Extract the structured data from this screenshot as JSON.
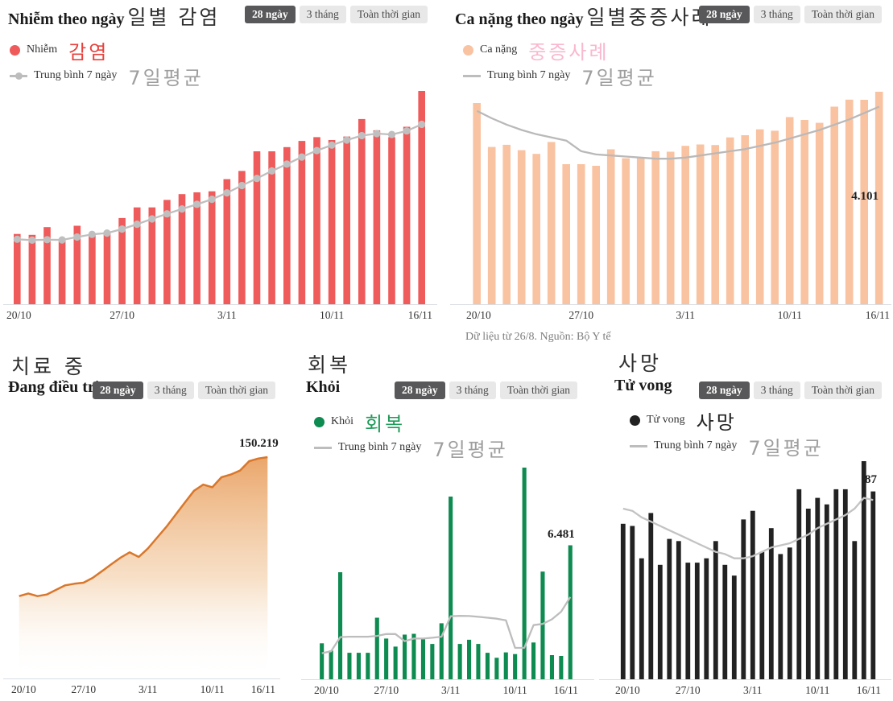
{
  "page": {
    "caption": "Dữ liệu từ 26/8. Nguồn: Bộ Y tế"
  },
  "tabs": {
    "items": [
      "28 ngày",
      "3 tháng",
      "Toàn thời gian"
    ],
    "selected": "28 ngày"
  },
  "colors": {
    "infections_bar": "#ef5a5a",
    "severe_bar": "#f9c3a2",
    "treatment_line": "#d9772b",
    "recovered_bar": "#0d8b50",
    "deaths_bar": "#222222",
    "average_line": "#bdbdbd",
    "tab_selected_bg": "#58585a",
    "tab_bg": "#e8e8e8",
    "korean_infection_text": "#e8413d",
    "korean_severe_text": "#f9b8cf",
    "korean_recovered_text": "#1d9a57",
    "korean_deaths_text": "#222222",
    "korean_average_text": "#9e9e9e",
    "axis_line": "#d9dde3"
  },
  "chart_data": [
    {
      "id": "infections",
      "type": "bar",
      "title": "Nhiễm theo ngày",
      "korean_title": "일별 감염",
      "legend": [
        {
          "label": "Nhiễm",
          "korean": "감염"
        },
        {
          "label": "Trung bình 7 ngày",
          "korean": "7일평균"
        }
      ],
      "categories": [
        "20/10",
        "21/10",
        "22/10",
        "23/10",
        "24/10",
        "25/10",
        "26/10",
        "27/10",
        "28/10",
        "29/10",
        "30/10",
        "31/10",
        "1/11",
        "2/11",
        "3/11",
        "4/11",
        "5/11",
        "6/11",
        "7/11",
        "8/11",
        "9/11",
        "10/11",
        "11/11",
        "12/11",
        "13/11",
        "14/11",
        "15/11",
        "16/11"
      ],
      "x_ticks": [
        "20/10",
        "27/10",
        "3/11",
        "10/11",
        "16/11"
      ],
      "tick_indices": [
        0,
        7,
        14,
        21,
        27
      ],
      "ylim": [
        0,
        9700
      ],
      "series": [
        {
          "name": "Nhiễm",
          "type": "bar",
          "color": "#ef5a5a",
          "values": [
            3180,
            3140,
            3490,
            2920,
            3550,
            3140,
            3200,
            3900,
            4380,
            4380,
            4720,
            4980,
            5060,
            5110,
            5660,
            6030,
            6920,
            6920,
            7110,
            7390,
            7560,
            7430,
            7590,
            8380,
            7870,
            7560,
            8030,
            9650
          ]
        },
        {
          "name": "Trung bình 7 ngày",
          "type": "line",
          "color": "#bfbfbf",
          "markers": true,
          "values": [
            2940,
            2900,
            2920,
            2910,
            3040,
            3160,
            3220,
            3400,
            3620,
            3860,
            4090,
            4310,
            4520,
            4750,
            5040,
            5370,
            5690,
            6030,
            6340,
            6660,
            6950,
            7200,
            7430,
            7630,
            7720,
            7680,
            7840,
            8140
          ]
        }
      ]
    },
    {
      "id": "severe",
      "type": "bar",
      "title": "Ca nặng theo ngày",
      "korean_title": "일별중증사례",
      "value_label": "4.101",
      "legend": [
        {
          "label": "Ca nặng",
          "korean": "중증사례"
        },
        {
          "label": "Trung bình 7 ngày",
          "korean": "7일평균"
        }
      ],
      "categories": [
        "20/10",
        "21/10",
        "22/10",
        "23/10",
        "24/10",
        "25/10",
        "26/10",
        "27/10",
        "28/10",
        "29/10",
        "30/10",
        "31/10",
        "1/11",
        "2/11",
        "3/11",
        "4/11",
        "5/11",
        "6/11",
        "7/11",
        "8/11",
        "9/11",
        "10/11",
        "11/11",
        "12/11",
        "13/11",
        "14/11",
        "15/11",
        "16/11"
      ],
      "x_ticks": [
        "20/10",
        "27/10",
        "3/11",
        "10/11",
        "16/11"
      ],
      "tick_indices": [
        0,
        7,
        14,
        21,
        27
      ],
      "ylim": [
        0,
        4300
      ],
      "series": [
        {
          "name": "Ca nặng",
          "type": "bar",
          "color": "#f9c3a2",
          "values": [
            3884,
            3036,
            3078,
            2974,
            2901,
            3131,
            2703,
            2703,
            2672,
            2990,
            2818,
            2843,
            2953,
            2943,
            3057,
            3083,
            3073,
            3220,
            3262,
            3376,
            3349,
            3611,
            3558,
            3502,
            3814,
            3949,
            3946,
            4101
          ]
        },
        {
          "name": "Trung bình 7 ngày",
          "type": "line",
          "color": "#b9b9b9",
          "markers": false,
          "values": [
            3732,
            3588,
            3465,
            3363,
            3281,
            3219,
            3158,
            2953,
            2891,
            2871,
            2850,
            2830,
            2809,
            2809,
            2830,
            2871,
            2912,
            2953,
            2994,
            3055,
            3117,
            3199,
            3281,
            3363,
            3465,
            3568,
            3691,
            3814
          ]
        }
      ]
    },
    {
      "id": "treatment",
      "type": "area",
      "title": "Đang điều trị",
      "korean_title": "치료 중",
      "value_label": "150.219",
      "legend": [],
      "categories": [
        "20/10",
        "21/10",
        "22/10",
        "23/10",
        "24/10",
        "25/10",
        "26/10",
        "27/10",
        "28/10",
        "29/10",
        "30/10",
        "31/10",
        "1/11",
        "2/11",
        "3/11",
        "4/11",
        "5/11",
        "6/11",
        "7/11",
        "8/11",
        "9/11",
        "10/11",
        "11/11",
        "12/11",
        "13/11",
        "14/11",
        "15/11",
        "16/11"
      ],
      "x_ticks": [
        "20/10",
        "27/10",
        "3/11",
        "10/11",
        "16/11"
      ],
      "tick_indices": [
        0,
        7,
        14,
        21,
        27
      ],
      "ylim": [
        0,
        155000
      ],
      "series": [
        {
          "name": "Đang điều trị",
          "type": "area",
          "color": "#d9772b",
          "values": [
            55900,
            57700,
            55900,
            57000,
            60100,
            63200,
            64300,
            65000,
            68300,
            72800,
            77400,
            81900,
            85600,
            82500,
            88300,
            95600,
            102900,
            111100,
            119300,
            127400,
            131600,
            129800,
            136600,
            138400,
            141100,
            147500,
            149300,
            150219
          ]
        }
      ]
    },
    {
      "id": "recovered",
      "type": "bar",
      "title": "Khỏi",
      "korean_title": "회복",
      "value_label": "6.481",
      "legend": [
        {
          "label": "Khỏi",
          "korean": "회복"
        },
        {
          "label": "Trung bình 7 ngày",
          "korean": "7일평균"
        }
      ],
      "categories": [
        "20/10",
        "21/10",
        "22/10",
        "23/10",
        "24/10",
        "25/10",
        "26/10",
        "27/10",
        "28/10",
        "29/10",
        "30/10",
        "31/10",
        "1/11",
        "2/11",
        "3/11",
        "4/11",
        "5/11",
        "6/11",
        "7/11",
        "8/11",
        "9/11",
        "10/11",
        "11/11",
        "12/11",
        "13/11",
        "14/11",
        "15/11",
        "16/11"
      ],
      "x_ticks": [
        "20/10",
        "27/10",
        "3/11",
        "10/11",
        "16/11"
      ],
      "tick_indices": [
        0,
        7,
        14,
        21,
        27
      ],
      "ylim": [
        0,
        10400
      ],
      "series": [
        {
          "name": "Khỏi",
          "type": "bar",
          "color": "#0d8b50",
          "values": [
            1740,
            1390,
            5180,
            1280,
            1280,
            1280,
            2980,
            1970,
            1580,
            2160,
            2200,
            1940,
            1710,
            2710,
            8840,
            1710,
            1910,
            1710,
            1280,
            1040,
            1300,
            1220,
            10240,
            1780,
            5210,
            1170,
            1130,
            6481
          ]
        },
        {
          "name": "Trung bình 7 ngày",
          "type": "line",
          "color": "#bdbdbd",
          "markers": false,
          "values": [
            1260,
            1350,
            2040,
            2060,
            2060,
            2060,
            2100,
            2190,
            2190,
            1840,
            1970,
            1970,
            2010,
            2060,
            3050,
            3070,
            3060,
            3020,
            2980,
            2930,
            2850,
            1520,
            1520,
            2620,
            2680,
            2900,
            3270,
            3980
          ]
        }
      ]
    },
    {
      "id": "deaths",
      "type": "bar",
      "title": "Tử vong",
      "korean_title": "사망",
      "value_label": "87",
      "legend": [
        {
          "label": "Tử vong",
          "korean": "사망"
        },
        {
          "label": "Trung bình 7 ngày",
          "korean": "7일평균"
        }
      ],
      "categories": [
        "20/10",
        "21/10",
        "22/10",
        "23/10",
        "24/10",
        "25/10",
        "26/10",
        "27/10",
        "28/10",
        "29/10",
        "30/10",
        "31/10",
        "1/11",
        "2/11",
        "3/11",
        "4/11",
        "5/11",
        "6/11",
        "7/11",
        "8/11",
        "9/11",
        "10/11",
        "11/11",
        "12/11",
        "13/11",
        "14/11",
        "15/11",
        "16/11"
      ],
      "x_ticks": [
        "20/10",
        "27/10",
        "3/11",
        "10/11",
        "16/11"
      ],
      "tick_indices": [
        0,
        7,
        14,
        21,
        27
      ],
      "ylim": [
        0,
        105
      ],
      "series": [
        {
          "name": "Tử vong",
          "type": "bar",
          "color": "#222222",
          "values": [
            72,
            71,
            56,
            77,
            53,
            65,
            64,
            54,
            54,
            56,
            64,
            53,
            48,
            74,
            78,
            59,
            70,
            58,
            61,
            88,
            79,
            84,
            81,
            88,
            88,
            64,
            101,
            87
          ]
        },
        {
          "name": "Trung bình 7 ngày",
          "type": "line",
          "color": "#c3c3c3",
          "markers": false,
          "values": [
            79,
            78,
            75,
            73,
            71,
            69,
            67,
            65,
            63,
            61,
            59,
            58,
            56,
            56,
            57,
            59,
            61,
            62,
            63,
            65,
            67,
            70,
            72,
            74,
            76,
            79,
            84,
            83
          ]
        }
      ]
    }
  ]
}
